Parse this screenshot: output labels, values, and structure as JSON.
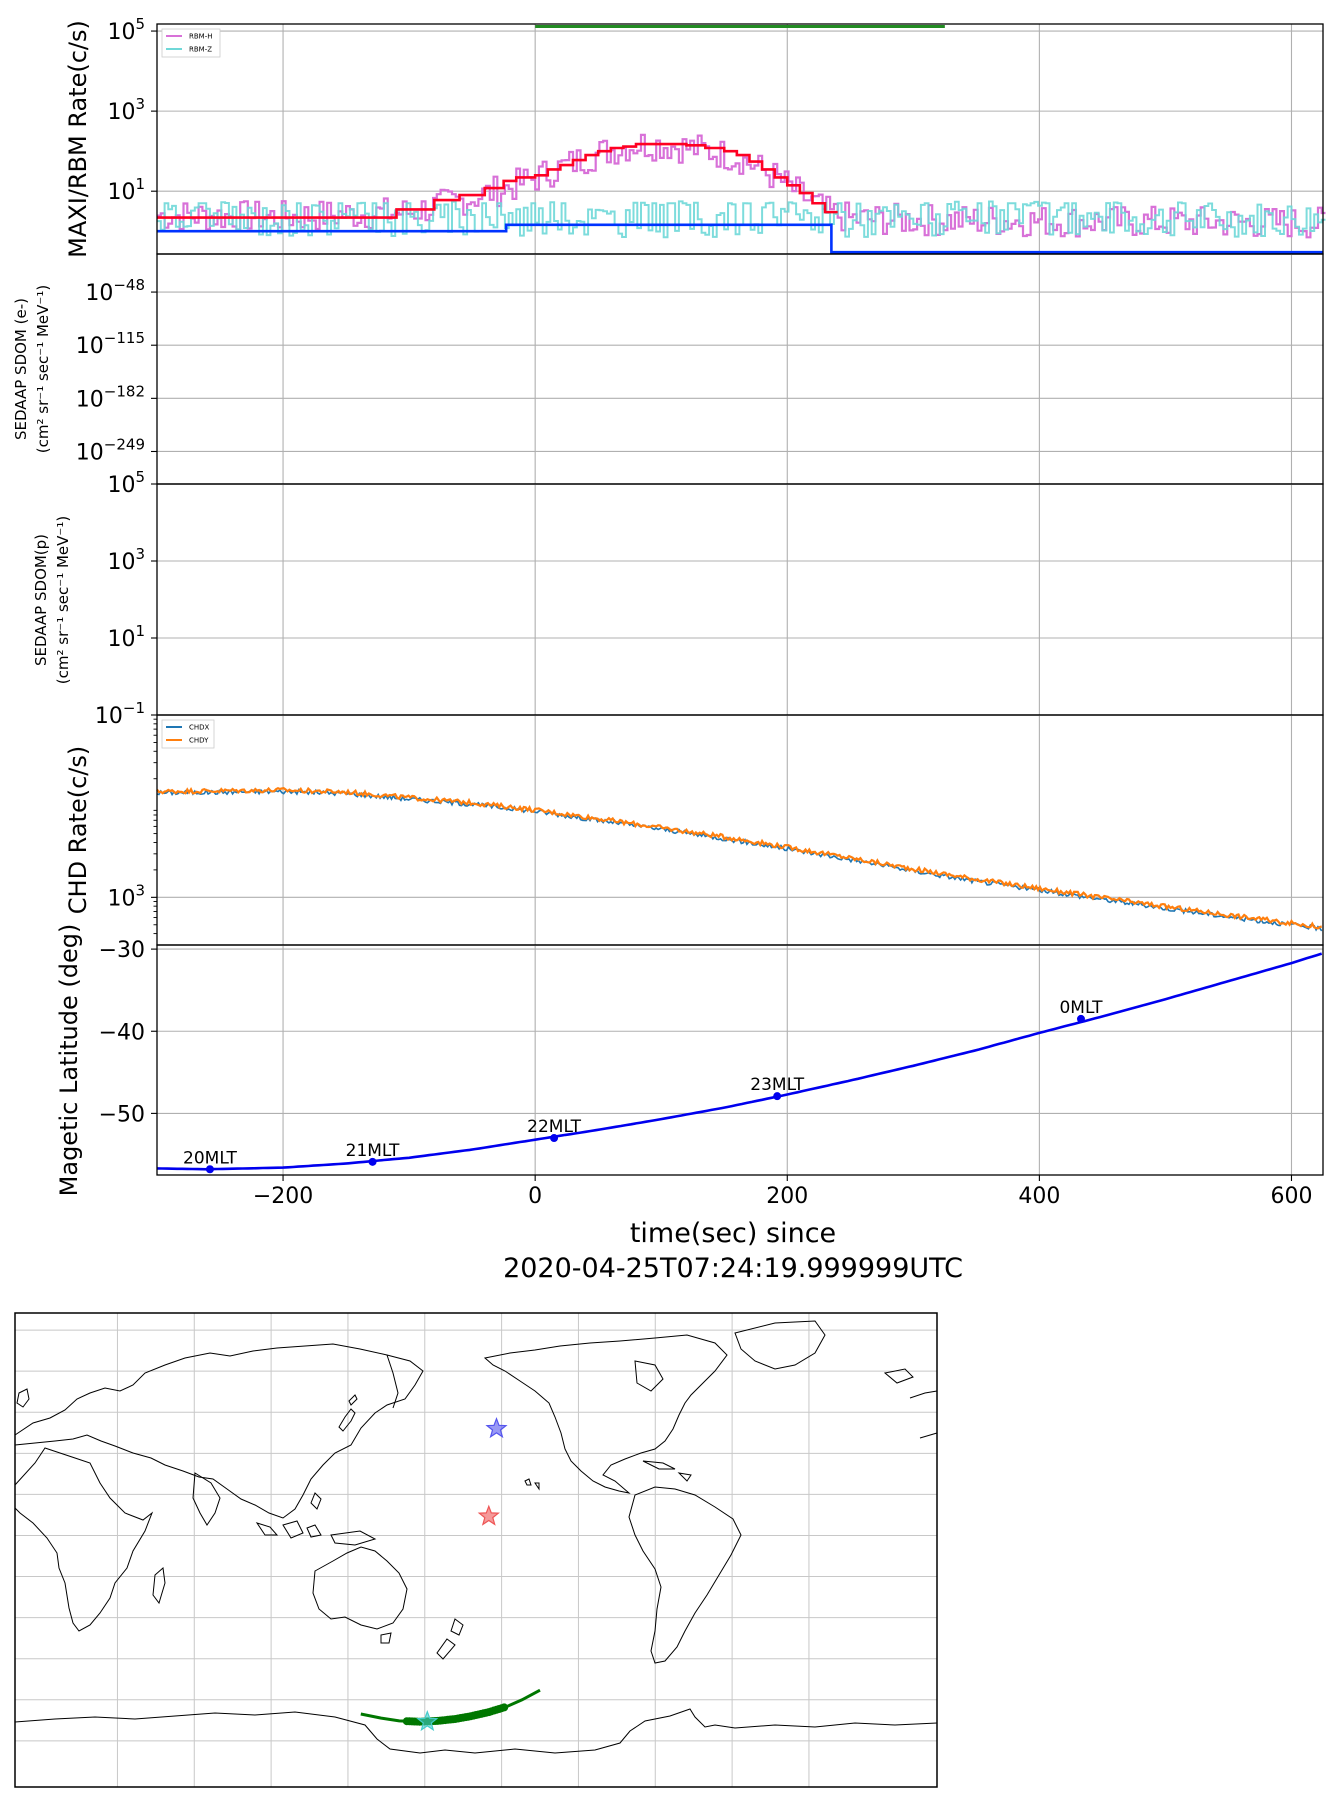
{
  "chart_data": [
    {
      "type": "line",
      "panel": "maxi-rbm",
      "ylabel": "MAXI/RBM Rate(c/s)",
      "yscale": "log",
      "ylim": [
        0.27,
        150000
      ],
      "xlim": [
        -300,
        625
      ],
      "grid": true,
      "yticks": [
        {
          "value": 10,
          "base": "10",
          "exp": "1"
        },
        {
          "value": 1000,
          "base": "10",
          "exp": "3"
        },
        {
          "value": 100000,
          "base": "10",
          "exp": "5"
        }
      ],
      "legend": {
        "placement": "top-left",
        "entries": [
          {
            "name": "RBM-H",
            "color": "#d871d8"
          },
          {
            "name": "RBM-Z",
            "color": "#6fd8d8"
          }
        ]
      },
      "interval_bar": {
        "x": [
          0,
          325
        ],
        "y": 130000,
        "color": "#228b22"
      },
      "maxi_red_steps": {
        "color": "#ff0022",
        "x": [
          -300,
          -200,
          -110,
          -80,
          -60,
          -40,
          -25,
          -15,
          0,
          10,
          20,
          30,
          40,
          50,
          60,
          70,
          80,
          100,
          120,
          135,
          150,
          160,
          170,
          180,
          190,
          200,
          210,
          220,
          230,
          240
        ],
        "y": [
          2.2,
          2.2,
          3.5,
          6,
          8,
          12,
          18,
          22,
          25,
          35,
          45,
          60,
          80,
          100,
          120,
          130,
          150,
          150,
          140,
          120,
          100,
          80,
          55,
          35,
          22,
          14,
          9,
          5,
          3,
          3
        ]
      },
      "maxi_blue_steps": {
        "color": "#0033ff",
        "x": [
          -300,
          -23,
          -23,
          235,
          235,
          625
        ],
        "y": [
          1.0,
          1.0,
          1.45,
          1.45,
          0.3,
          0.3
        ]
      },
      "rbm_h_profile": {
        "x": [
          -300,
          -200,
          -100,
          -50,
          -20,
          0,
          20,
          50,
          80,
          100,
          130,
          160,
          190,
          210,
          230,
          250,
          400,
          625
        ],
        "y": [
          2.5,
          2.3,
          3,
          7,
          13,
          22,
          40,
          90,
          150,
          145,
          110,
          70,
          22,
          8,
          3,
          2,
          1.8,
          1.6
        ]
      },
      "rbm_z_profile": {
        "x": [
          -300,
          625
        ],
        "y": [
          2,
          2
        ]
      }
    },
    {
      "type": "line",
      "panel": "sedaap-e",
      "ylabel_lines": [
        "SEDAAP SDOM (e-)",
        "(cm² sr⁻¹ sec⁻¹ MeV⁻¹)"
      ],
      "yscale": "log",
      "ylim": [
        -290,
        0
      ],
      "grid": true,
      "yticks": [
        {
          "value": -48,
          "base": "10",
          "exp": "−48"
        },
        {
          "value": -115,
          "base": "10",
          "exp": "−115"
        },
        {
          "value": -182,
          "base": "10",
          "exp": "−182"
        },
        {
          "value": -249,
          "base": "10",
          "exp": "−249"
        }
      ]
    },
    {
      "type": "line",
      "panel": "sedaap-p",
      "ylabel_lines": [
        "SEDAAP SDOM(p)",
        "(cm² sr⁻¹ sec⁻¹ MeV⁻¹)"
      ],
      "yscale": "log",
      "ylim": [
        0.1,
        100000
      ],
      "grid": true,
      "yticks": [
        {
          "value": 0.1,
          "base": "10",
          "exp": "−1"
        },
        {
          "value": 10,
          "base": "10",
          "exp": "1"
        },
        {
          "value": 1000,
          "base": "10",
          "exp": "3"
        },
        {
          "value": 100000,
          "base": "10",
          "exp": "5"
        }
      ]
    },
    {
      "type": "line",
      "panel": "chd",
      "ylabel": "CHD Rate(c/s)",
      "yscale": "log",
      "ylim": [
        300,
        100000
      ],
      "grid": true,
      "yticks": [
        {
          "value": 1000,
          "base": "10",
          "exp": "3"
        }
      ],
      "legend": {
        "placement": "top-left",
        "entries": [
          {
            "name": "CHDX",
            "color": "#1f77b4"
          },
          {
            "name": "CHDY",
            "color": "#ff7f0e"
          }
        ]
      },
      "series": [
        {
          "name": "CHDX",
          "color": "#1f77b4",
          "x": [
            -300,
            -200,
            -150,
            -100,
            -50,
            0,
            50,
            100,
            150,
            200,
            250,
            300,
            350,
            400,
            450,
            500,
            550,
            600,
            625
          ],
          "y": [
            14000,
            14500,
            13800,
            12000,
            10500,
            8800,
            7000,
            5600,
            4400,
            3400,
            2600,
            1950,
            1500,
            1200,
            950,
            760,
            610,
            500,
            450
          ]
        },
        {
          "name": "CHDY",
          "color": "#ff7f0e",
          "x": [
            -300,
            -200,
            -150,
            -100,
            -50,
            0,
            50,
            100,
            150,
            200,
            250,
            300,
            350,
            400,
            450,
            500,
            550,
            600,
            625
          ],
          "y": [
            14500,
            15000,
            14300,
            12400,
            10900,
            9100,
            7300,
            5800,
            4600,
            3550,
            2700,
            2050,
            1580,
            1250,
            990,
            790,
            640,
            520,
            470
          ]
        }
      ]
    },
    {
      "type": "line",
      "panel": "maglat",
      "ylabel": "Magetic Latitude  (deg)",
      "xlabel_lines": [
        "time(sec) since",
        "2020-04-25T07:24:19.999999UTC"
      ],
      "xlim": [
        -300,
        625
      ],
      "ylim": [
        -57.5,
        -29.5
      ],
      "grid": true,
      "xticks": [
        "−200",
        "0",
        "200",
        "400",
        "600"
      ],
      "xtick_values": [
        -200,
        0,
        200,
        400,
        600
      ],
      "yticks": [
        "−30",
        "−40",
        "−50"
      ],
      "ytick_values": [
        -30,
        -40,
        -50
      ],
      "series": [
        {
          "color": "#0000ee",
          "x": [
            -300,
            -260,
            -200,
            -150,
            -100,
            -50,
            0,
            50,
            100,
            150,
            200,
            250,
            300,
            350,
            400,
            450,
            500,
            550,
            600,
            625
          ],
          "y": [
            -56.7,
            -56.8,
            -56.6,
            -56.1,
            -55.4,
            -54.4,
            -53.2,
            -52.0,
            -50.7,
            -49.3,
            -47.7,
            -46.0,
            -44.2,
            -42.3,
            -40.2,
            -38.2,
            -36.1,
            -33.9,
            -31.7,
            -30.5
          ]
        }
      ],
      "mlt_markers": [
        {
          "label": "20MLT",
          "x": -258,
          "y": -56.8
        },
        {
          "label": "21MLT",
          "x": -129,
          "y": -55.9
        },
        {
          "label": "22MLT",
          "x": 15,
          "y": -53.0
        },
        {
          "label": "23MLT",
          "x": 192,
          "y": -47.9
        },
        {
          "label": "0MLT",
          "x": 433,
          "y": -38.5
        }
      ]
    },
    {
      "type": "map",
      "panel": "world-map",
      "track": {
        "color": "#007700",
        "lon": [
          155,
          163,
          170,
          178,
          185,
          192,
          198,
          205,
          212,
          218,
          225
        ],
        "lat": [
          -65.2,
          -66.7,
          -67.7,
          -68.0,
          -67.7,
          -67.0,
          -66.0,
          -64.5,
          -62.5,
          -60.0,
          -56.5
        ]
      },
      "track_dense_range": {
        "lon": [
          173,
          211
        ]
      },
      "stars": [
        {
          "name": "blue-star",
          "lon": 208,
          "lat": 39,
          "color": "#5555ee"
        },
        {
          "name": "red-star",
          "lon": 205,
          "lat": 7,
          "color": "#ee5555"
        },
        {
          "name": "cyan-star",
          "lon": 181,
          "lat": -68,
          "color": "#44cccc"
        }
      ]
    }
  ]
}
